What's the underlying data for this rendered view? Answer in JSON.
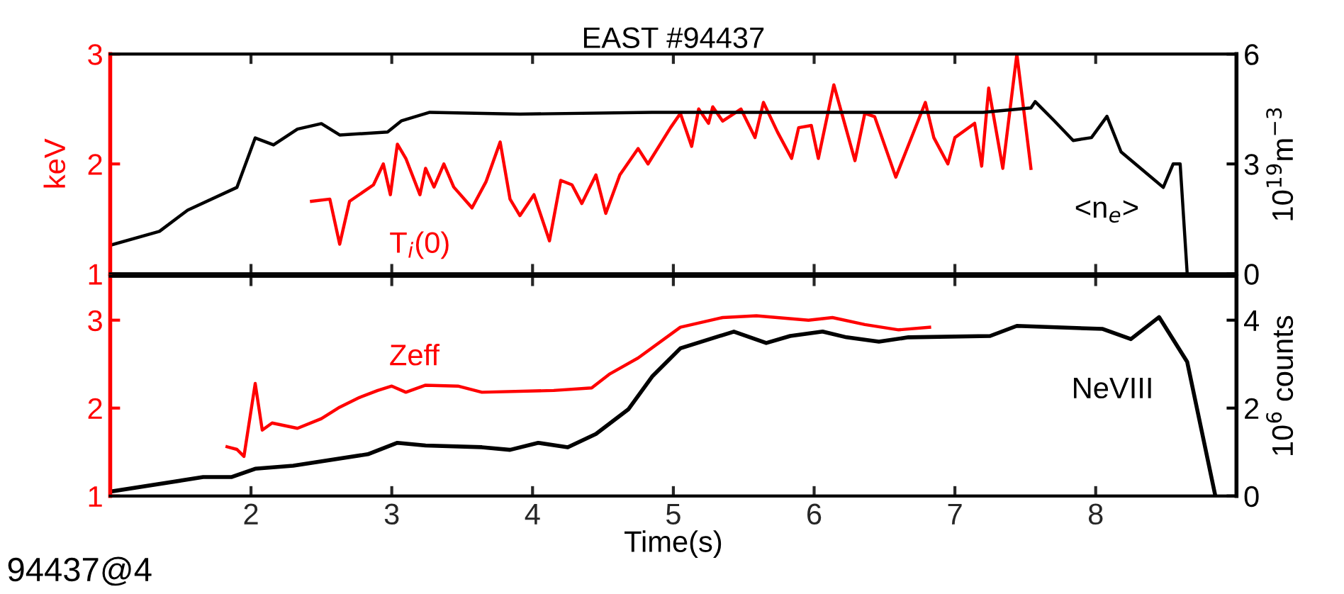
{
  "chart_data": [
    {
      "type": "line",
      "title": "EAST #94437",
      "ylabel": "keV",
      "y2label": "10$^{19}$m$^{−3}$",
      "xlim": [
        1,
        9
      ],
      "xticks": [
        2,
        3,
        4,
        5,
        6,
        7,
        8
      ],
      "ylim": [
        1,
        3
      ],
      "yticks": [
        1,
        2,
        3
      ],
      "y2lim": [
        0,
        6
      ],
      "y2ticks": [
        0,
        3,
        6
      ],
      "tick_labels": "y",
      "series": [
        {
          "name": "T$_{i}$(0)",
          "color": "#ff0000",
          "x": [
            2.43,
            2.56,
            2.63,
            2.7,
            2.87,
            2.94,
            2.99,
            3.04,
            3.1,
            3.2,
            3.24,
            3.3,
            3.37,
            3.44,
            3.57,
            3.67,
            3.77,
            3.84,
            3.91,
            4.01,
            4.12,
            4.2,
            4.28,
            4.35,
            4.45,
            4.52,
            4.62,
            4.75,
            4.82,
            4.98,
            5.05,
            5.13,
            5.18,
            5.25,
            5.28,
            5.35,
            5.48,
            5.58,
            5.64,
            5.74,
            5.84,
            5.89,
            5.98,
            6.03,
            6.14,
            6.29,
            6.36,
            6.43,
            6.58,
            6.79,
            6.85,
            6.95,
            7.0,
            7.14,
            7.19,
            7.24,
            7.34,
            7.44,
            7.54
          ],
          "values": [
            1.66,
            1.68,
            1.27,
            1.66,
            1.81,
            2.0,
            1.72,
            2.18,
            2.05,
            1.72,
            1.96,
            1.79,
            2.0,
            1.79,
            1.6,
            1.84,
            2.2,
            1.68,
            1.53,
            1.72,
            1.3,
            1.85,
            1.81,
            1.64,
            1.9,
            1.55,
            1.9,
            2.14,
            2.0,
            2.33,
            2.46,
            2.16,
            2.5,
            2.37,
            2.52,
            2.39,
            2.5,
            2.24,
            2.56,
            2.29,
            2.05,
            2.33,
            2.35,
            2.05,
            2.72,
            2.03,
            2.46,
            2.43,
            1.88,
            2.56,
            2.24,
            2.0,
            2.24,
            2.37,
            1.98,
            2.69,
            1.96,
            3.0,
            1.96
          ]
        },
        {
          "name": "<n$_{e}$>",
          "color": "#000000",
          "axis": "y2",
          "x": [
            1.0,
            1.35,
            1.55,
            1.9,
            2.03,
            2.16,
            2.33,
            2.5,
            2.63,
            2.97,
            3.07,
            3.27,
            3.91,
            4.85,
            5.02,
            7.2,
            7.54,
            7.57,
            7.7,
            7.84,
            7.97,
            8.08,
            8.18,
            8.48,
            8.55,
            8.6,
            8.65
          ],
          "values": [
            0.78,
            1.16,
            1.74,
            2.36,
            3.71,
            3.52,
            3.95,
            4.1,
            3.79,
            3.87,
            4.18,
            4.41,
            4.36,
            4.41,
            4.41,
            4.41,
            4.53,
            4.7,
            4.2,
            3.64,
            3.72,
            4.3,
            3.33,
            2.36,
            3.0,
            3.0,
            0.0
          ]
        }
      ]
    },
    {
      "type": "line",
      "xlabel": "Time(s)",
      "y2label": "10$^{6}$ counts",
      "xlim": [
        1,
        9
      ],
      "xticks": [
        2,
        3,
        4,
        5,
        6,
        7,
        8
      ],
      "ylim": [
        1,
        3.5
      ],
      "yticks": [
        1,
        2,
        3
      ],
      "y2lim": [
        0,
        5
      ],
      "y2ticks": [
        0,
        2,
        4
      ],
      "annotations": [
        "94437@4"
      ],
      "series": [
        {
          "name": "Zeff",
          "color": "#ff0000",
          "x": [
            1.83,
            1.9,
            1.95,
            2.03,
            2.08,
            2.15,
            2.33,
            2.5,
            2.63,
            2.77,
            2.9,
            3.0,
            3.1,
            3.24,
            3.47,
            3.64,
            4.15,
            4.42,
            4.55,
            4.75,
            5.05,
            5.35,
            5.59,
            5.96,
            6.13,
            6.36,
            6.6,
            6.82
          ],
          "values": [
            1.56,
            1.53,
            1.45,
            2.28,
            1.75,
            1.83,
            1.77,
            1.88,
            2.01,
            2.12,
            2.2,
            2.25,
            2.18,
            2.26,
            2.25,
            2.18,
            2.2,
            2.23,
            2.39,
            2.57,
            2.92,
            3.03,
            3.05,
            3.0,
            3.03,
            2.95,
            2.89,
            2.92
          ]
        },
        {
          "name": "NeVIII",
          "color": "#000000",
          "axis": "y2",
          "x": [
            1.0,
            1.66,
            1.86,
            2.03,
            2.3,
            2.83,
            3.04,
            3.24,
            3.64,
            3.84,
            4.04,
            4.25,
            4.45,
            4.68,
            4.85,
            5.05,
            5.43,
            5.66,
            5.83,
            6.06,
            6.23,
            6.46,
            6.67,
            7.25,
            7.44,
            8.05,
            8.25,
            8.45,
            8.65,
            8.85
          ],
          "values": [
            0.1,
            0.43,
            0.43,
            0.62,
            0.69,
            0.95,
            1.21,
            1.15,
            1.11,
            1.05,
            1.21,
            1.11,
            1.41,
            1.97,
            2.72,
            3.36,
            3.74,
            3.48,
            3.64,
            3.74,
            3.61,
            3.51,
            3.61,
            3.64,
            3.87,
            3.8,
            3.57,
            4.07,
            3.05,
            0.0
          ]
        }
      ]
    }
  ]
}
